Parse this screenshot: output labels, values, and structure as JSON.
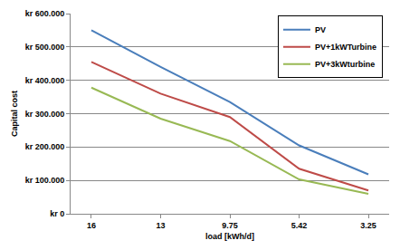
{
  "chart_data": {
    "type": "line",
    "x_label": "load [kWh/d]",
    "y_label": "Capital cost",
    "categories": [
      "16",
      "13",
      "9.75",
      "5.42",
      "3.25"
    ],
    "series": [
      {
        "name": "PV",
        "color": "#4a7ebb",
        "values": [
          550000,
          440000,
          335000,
          205000,
          118000
        ]
      },
      {
        "name": "PV+1kWTurbine",
        "color": "#be4b48",
        "values": [
          455000,
          360000,
          290000,
          135000,
          70000
        ]
      },
      {
        "name": "PV+3kWturbine",
        "color": "#98b954",
        "values": [
          378000,
          285000,
          218000,
          103000,
          60000
        ]
      }
    ],
    "ylim": [
      0,
      600000
    ],
    "yticks": [
      {
        "value": 0,
        "label": "kr 0"
      },
      {
        "value": 100000,
        "label": "kr 100.000"
      },
      {
        "value": 200000,
        "label": "kr 200.000"
      },
      {
        "value": 300000,
        "label": "kr 300.000"
      },
      {
        "value": 400000,
        "label": "kr 400.000"
      },
      {
        "value": 500000,
        "label": "kr 500.000"
      },
      {
        "value": 600000,
        "label": "kr 600.000"
      }
    ],
    "grid": true,
    "legend": "top-right"
  }
}
